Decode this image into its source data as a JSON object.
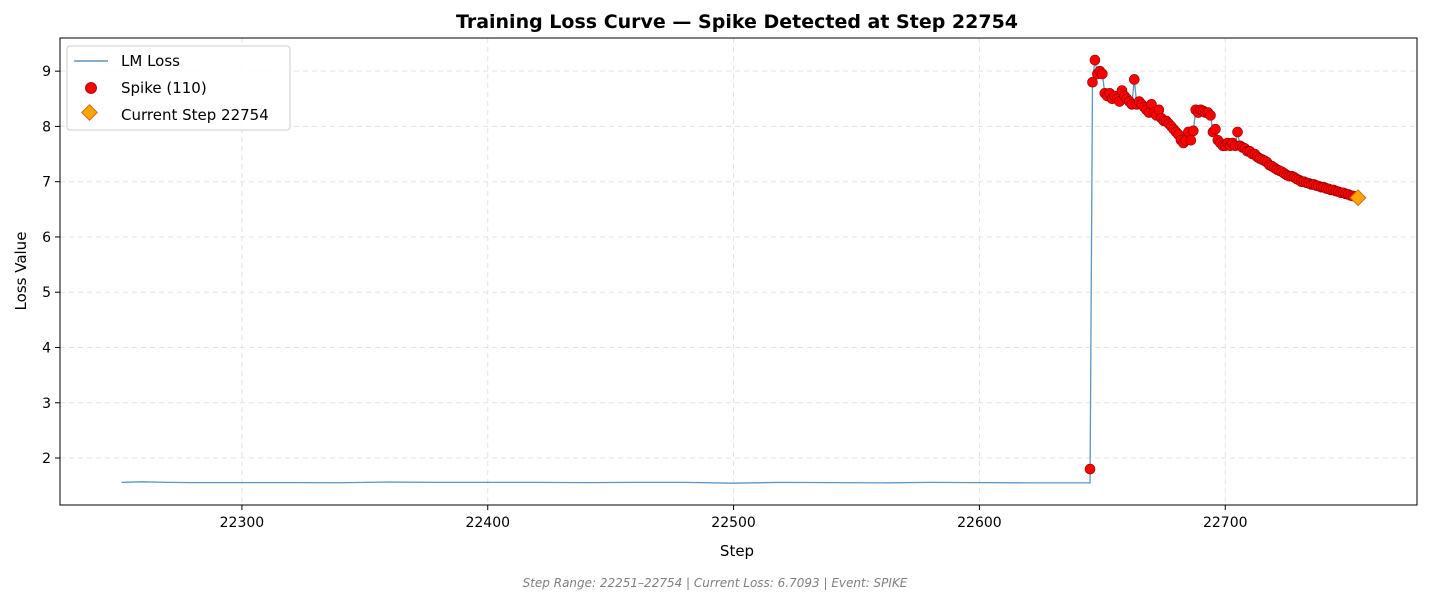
{
  "chart_data": {
    "type": "line",
    "title": "Training Loss Curve — Spike Detected at Step 22754",
    "xlabel": "Step",
    "ylabel": "Loss Value",
    "xlim": [
      22226,
      22778
    ],
    "ylim": [
      1.15,
      9.6
    ],
    "xticks": [
      22300,
      22400,
      22500,
      22600,
      22700
    ],
    "yticks": [
      2,
      3,
      4,
      5,
      6,
      7,
      8,
      9
    ],
    "grid": true,
    "legend_position": "top-left",
    "legend": {
      "line": "LM Loss",
      "spike": "Spike (110)",
      "current": "Current Step 22754"
    },
    "colors": {
      "line": "#5b97c4",
      "spike": "#ff0000",
      "spike_edge": "#8b0000",
      "current": "#ffa500",
      "current_edge": "#d2691e"
    },
    "series": [
      {
        "name": "LM Loss",
        "x": [
          22251,
          22260,
          22270,
          22280,
          22290,
          22300,
          22320,
          22340,
          22350,
          22360,
          22380,
          22400,
          22420,
          22440,
          22460,
          22480,
          22500,
          22520,
          22540,
          22560,
          22580,
          22600,
          22620,
          22640,
          22645
        ],
        "y": [
          1.56,
          1.57,
          1.56,
          1.555,
          1.555,
          1.555,
          1.555,
          1.553,
          1.56,
          1.565,
          1.56,
          1.56,
          1.56,
          1.555,
          1.56,
          1.56,
          1.545,
          1.56,
          1.555,
          1.55,
          1.56,
          1.555,
          1.55,
          1.55,
          1.55
        ]
      }
    ],
    "spike_points": {
      "x": [
        22645,
        22646,
        22647,
        22648,
        22649,
        22650,
        22651,
        22652,
        22653,
        22654,
        22655,
        22656,
        22657,
        22658,
        22659,
        22660,
        22661,
        22662,
        22663,
        22664,
        22665,
        22666,
        22667,
        22668,
        22669,
        22670,
        22671,
        22672,
        22673,
        22674,
        22675,
        22676,
        22677,
        22678,
        22679,
        22680,
        22681,
        22682,
        22683,
        22684,
        22685,
        22686,
        22687,
        22688,
        22689,
        22690,
        22691,
        22692,
        22693,
        22694,
        22695,
        22696,
        22697,
        22698,
        22699,
        22700,
        22701,
        22702,
        22703,
        22704,
        22705,
        22706,
        22707,
        22708,
        22709,
        22710,
        22711,
        22712,
        22713,
        22714,
        22715,
        22716,
        22717,
        22718,
        22719,
        22720,
        22721,
        22722,
        22723,
        22724,
        22725,
        22726,
        22727,
        22728,
        22729,
        22730,
        22731,
        22732,
        22733,
        22734,
        22735,
        22736,
        22737,
        22738,
        22739,
        22740,
        22741,
        22742,
        22743,
        22744,
        22745,
        22746,
        22747,
        22748,
        22749,
        22750,
        22751,
        22752,
        22753
      ],
      "y": [
        1.8,
        8.8,
        9.2,
        8.95,
        9.0,
        8.95,
        8.6,
        8.55,
        8.6,
        8.5,
        8.55,
        8.5,
        8.45,
        8.65,
        8.55,
        8.5,
        8.45,
        8.4,
        8.85,
        8.4,
        8.45,
        8.4,
        8.35,
        8.3,
        8.25,
        8.4,
        8.25,
        8.2,
        8.3,
        8.15,
        8.1,
        8.1,
        8.05,
        8.0,
        7.95,
        7.9,
        7.85,
        7.75,
        7.7,
        7.75,
        7.9,
        7.75,
        7.92,
        8.3,
        8.25,
        8.3,
        8.28,
        8.25,
        8.25,
        8.2,
        7.9,
        7.95,
        7.75,
        7.7,
        7.65,
        7.65,
        7.7,
        7.65,
        7.7,
        7.65,
        7.9,
        7.65,
        7.62,
        7.6,
        7.55,
        7.55,
        7.5,
        7.5,
        7.45,
        7.42,
        7.4,
        7.38,
        7.35,
        7.3,
        7.28,
        7.25,
        7.22,
        7.2,
        7.18,
        7.15,
        7.12,
        7.1,
        7.1,
        7.08,
        7.05,
        7.03,
        7.0,
        7.0,
        6.98,
        6.97,
        6.95,
        6.95,
        6.93,
        6.92,
        6.9,
        6.9,
        6.88,
        6.87,
        6.85,
        6.85,
        6.83,
        6.82,
        6.8,
        6.8,
        6.78,
        6.77,
        6.75,
        6.74,
        6.73
      ]
    },
    "current_point": {
      "x": 22754,
      "y": 6.7093
    },
    "footer": "Step Range: 22251–22754 | Current Loss: 6.7093 | Event: SPIKE"
  }
}
